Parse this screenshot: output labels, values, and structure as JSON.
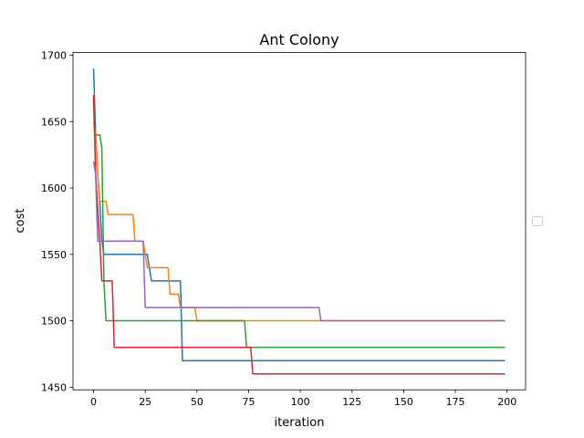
{
  "chart_data": {
    "type": "line",
    "title": "Ant Colony",
    "xlabel": "iteration",
    "ylabel": "cost",
    "xlim": [
      -9.95,
      208.95
    ],
    "ylim": [
      1448,
      1702
    ],
    "xticks": [
      0,
      25,
      50,
      75,
      100,
      125,
      150,
      175,
      200
    ],
    "yticks": [
      1450,
      1500,
      1550,
      1600,
      1650,
      1700
    ],
    "grid": false,
    "legend": "right, outside plot, empty",
    "colors": [
      "#1f77b4",
      "#ff7f0e",
      "#2ca02c",
      "#d62728",
      "#9467bd"
    ],
    "series": [
      {
        "points": [
          [
            0,
            1690
          ],
          [
            1,
            1640
          ],
          [
            2,
            1610
          ],
          [
            3,
            1590
          ],
          [
            4,
            1560
          ],
          [
            5,
            1550
          ],
          [
            6,
            1550
          ],
          [
            7,
            1550
          ],
          [
            25,
            1550
          ],
          [
            26,
            1550
          ],
          [
            27,
            1540
          ],
          [
            28,
            1530
          ],
          [
            29,
            1530
          ],
          [
            42,
            1530
          ],
          [
            43,
            1470
          ],
          [
            199,
            1470
          ]
        ]
      },
      {
        "points": [
          [
            0,
            1650
          ],
          [
            1,
            1640
          ],
          [
            2,
            1610
          ],
          [
            3,
            1590
          ],
          [
            6,
            1590
          ],
          [
            7,
            1580
          ],
          [
            19,
            1580
          ],
          [
            20,
            1560
          ],
          [
            24,
            1560
          ],
          [
            25,
            1550
          ],
          [
            26,
            1540
          ],
          [
            36,
            1540
          ],
          [
            37,
            1520
          ],
          [
            41,
            1520
          ],
          [
            42,
            1510
          ],
          [
            49,
            1510
          ],
          [
            50,
            1500
          ],
          [
            199,
            1500
          ]
        ]
      },
      {
        "points": [
          [
            0,
            1640
          ],
          [
            3,
            1640
          ],
          [
            4,
            1630
          ],
          [
            5,
            1530
          ],
          [
            6,
            1500
          ],
          [
            73,
            1500
          ],
          [
            74,
            1480
          ],
          [
            199,
            1480
          ]
        ]
      },
      {
        "points": [
          [
            0,
            1670
          ],
          [
            1,
            1610
          ],
          [
            3,
            1560
          ],
          [
            4,
            1530
          ],
          [
            9,
            1530
          ],
          [
            10,
            1480
          ],
          [
            76,
            1480
          ],
          [
            77,
            1460
          ],
          [
            199,
            1460
          ]
        ]
      },
      {
        "points": [
          [
            0,
            1620
          ],
          [
            1,
            1610
          ],
          [
            2,
            1560
          ],
          [
            24,
            1560
          ],
          [
            25,
            1510
          ],
          [
            109,
            1510
          ],
          [
            110,
            1500
          ],
          [
            199,
            1500
          ]
        ]
      }
    ]
  }
}
